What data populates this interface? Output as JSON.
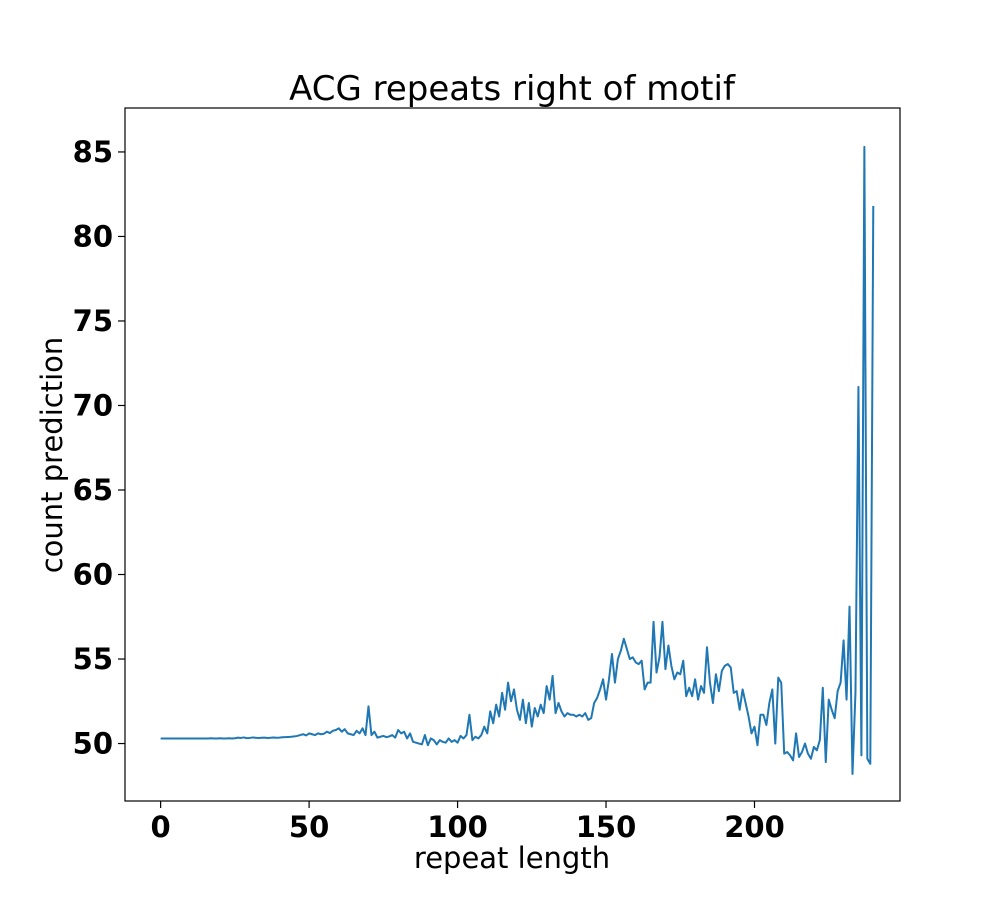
{
  "chart_data": {
    "type": "line",
    "title": "ACG repeats right of motif",
    "xlabel": "repeat length",
    "ylabel": "count prediction",
    "xlim": [
      -12,
      249
    ],
    "ylim": [
      46.6,
      87.6
    ],
    "xticks": [
      "0",
      "50",
      "100",
      "150",
      "200"
    ],
    "yticks": [
      "50",
      "55",
      "60",
      "65",
      "70",
      "75",
      "80",
      "85"
    ],
    "grid": false,
    "legend": "none",
    "series": [
      {
        "color": "#1f77b4",
        "x_start": 0,
        "x_step": 1,
        "values": [
          50.3,
          50.3,
          50.3,
          50.3,
          50.3,
          50.3,
          50.3,
          50.3,
          50.3,
          50.3,
          50.3,
          50.3,
          50.3,
          50.3,
          50.3,
          50.3,
          50.3,
          50.31,
          50.3,
          50.3,
          50.31,
          50.3,
          50.3,
          50.31,
          50.3,
          50.31,
          50.35,
          50.33,
          50.36,
          50.32,
          50.33,
          50.36,
          50.34,
          50.33,
          50.34,
          50.35,
          50.33,
          50.34,
          50.36,
          50.34,
          50.35,
          50.37,
          50.38,
          50.39,
          50.4,
          50.42,
          50.45,
          50.5,
          50.55,
          50.48,
          50.6,
          50.55,
          50.5,
          50.6,
          50.55,
          50.58,
          50.7,
          50.62,
          50.75,
          50.8,
          50.9,
          50.7,
          50.85,
          50.6,
          50.55,
          50.5,
          50.75,
          50.6,
          50.9,
          50.5,
          52.2,
          50.5,
          50.7,
          50.35,
          50.4,
          50.45,
          50.38,
          50.42,
          50.5,
          50.35,
          50.8,
          50.6,
          50.7,
          50.3,
          50.6,
          50.1,
          50.05,
          50.0,
          49.95,
          50.5,
          49.9,
          50.3,
          50.2,
          49.95,
          50.2,
          50.1,
          50.05,
          50.3,
          50.1,
          50.2,
          50.05,
          50.45,
          50.3,
          50.5,
          51.7,
          50.2,
          50.4,
          50.3,
          50.5,
          51.0,
          50.6,
          51.9,
          51.2,
          52.3,
          51.6,
          53.0,
          52.0,
          53.6,
          52.5,
          53.2,
          52.0,
          51.4,
          52.6,
          51.2,
          52.4,
          51.0,
          52.1,
          51.6,
          52.3,
          51.8,
          53.4,
          52.6,
          54.0,
          51.8,
          52.4,
          51.9,
          51.6,
          51.8,
          51.7,
          51.7,
          51.6,
          51.7,
          51.6,
          51.8,
          51.4,
          51.5,
          52.4,
          52.7,
          53.2,
          53.8,
          52.6,
          53.8,
          55.3,
          53.6,
          55.0,
          55.5,
          56.2,
          55.6,
          55.0,
          55.1,
          54.8,
          54.7,
          54.9,
          53.2,
          53.6,
          53.6,
          57.2,
          54.2,
          55.1,
          57.2,
          54.4,
          55.8,
          54.6,
          53.8,
          54.2,
          54.1,
          54.9,
          52.8,
          53.3,
          52.8,
          53.8,
          52.6,
          53.4,
          53.0,
          55.7,
          53.6,
          52.4,
          54.1,
          53.1,
          54.3,
          54.6,
          54.7,
          54.5,
          53.0,
          53.1,
          52.0,
          53.2,
          52.4,
          51.6,
          50.6,
          51.0,
          49.9,
          51.7,
          51.7,
          51.1,
          52.4,
          53.2,
          50.0,
          53.9,
          53.6,
          49.4,
          49.5,
          49.3,
          49.0,
          50.6,
          49.2,
          49.5,
          50.0,
          49.4,
          49.1,
          49.8,
          49.6,
          50.2,
          53.3,
          48.9,
          52.6,
          52.0,
          51.5,
          53.1,
          53.6,
          56.1,
          52.6,
          58.1,
          48.2,
          53.0,
          71.1,
          49.3,
          85.3,
          49.1,
          48.8,
          81.8
        ]
      }
    ]
  }
}
